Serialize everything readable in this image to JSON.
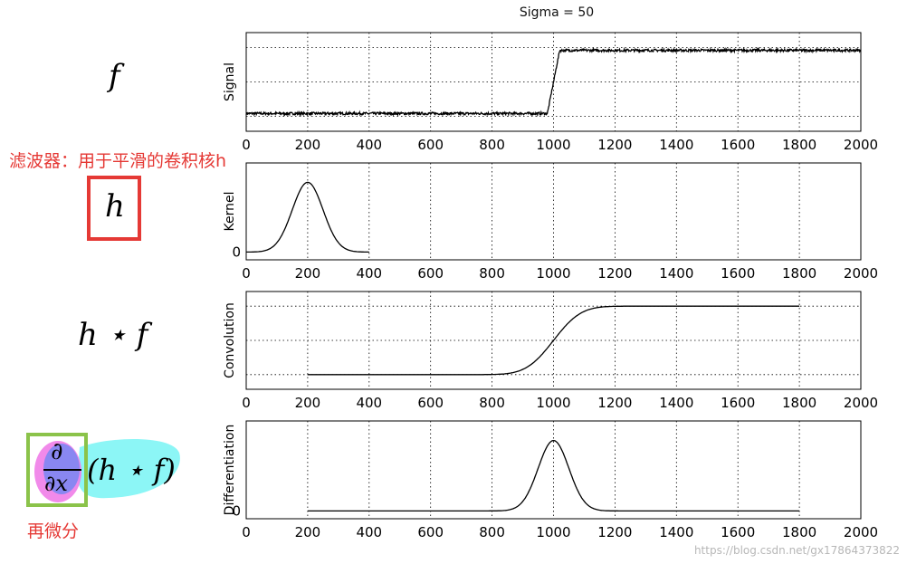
{
  "title": "Sigma = 50",
  "annotations": {
    "filter_text": "滤波器：用于平滑的卷积核h",
    "diff_text": "再微分",
    "watermark": "https://blog.csdn.net/gx17864373822"
  },
  "left_labels": {
    "f": "f",
    "h": "h",
    "conv": "h ⋆ f",
    "diff_num": "∂",
    "diff_den": "∂x",
    "diff_rest": "(h ⋆ f)"
  },
  "colors": {
    "line": "#000000",
    "grid": "#000000",
    "accent_red": "#e53935",
    "accent_green": "#8bc34a",
    "highlight_cyan": "#7ff5f5",
    "highlight_pink": "#f07de8",
    "highlight_blue": "#7d86f2"
  },
  "chart_data": [
    {
      "type": "line",
      "ylabel": "Signal",
      "xlim": [
        0,
        2000
      ],
      "x_ticks": [
        "0",
        "200",
        "400",
        "600",
        "800",
        "1000",
        "1200",
        "1400",
        "1600",
        "1800",
        "2000"
      ],
      "y_ticks": [],
      "grid": true,
      "series": [
        {
          "x": [
            0,
            980,
            1020,
            2000
          ],
          "y": [
            0,
            0,
            1,
            1
          ],
          "noise": 0.02
        }
      ]
    },
    {
      "type": "line",
      "ylabel": "Kernel",
      "xlim": [
        0,
        2000
      ],
      "x_ticks": [
        "0",
        "200",
        "400",
        "600",
        "800",
        "1000",
        "1200",
        "1400",
        "1600",
        "1800",
        "2000"
      ],
      "y_ticks": [
        "0"
      ],
      "grid": true,
      "series": [
        {
          "gaussian": {
            "center": 200,
            "sigma": 50,
            "start": 0,
            "end": 400,
            "peak": 1
          }
        }
      ]
    },
    {
      "type": "line",
      "ylabel": "Convolution",
      "xlim": [
        0,
        2000
      ],
      "x_ticks": [
        "0",
        "200",
        "400",
        "600",
        "800",
        "1000",
        "1200",
        "1400",
        "1600",
        "1800",
        "2000"
      ],
      "y_ticks": [],
      "grid": true,
      "series": [
        {
          "smooth_step": {
            "center": 1000,
            "sigma": 50,
            "start": 200,
            "end": 1800
          }
        }
      ]
    },
    {
      "type": "line",
      "ylabel": "Differentiation",
      "xlim": [
        0,
        2000
      ],
      "x_ticks": [
        "0",
        "200",
        "400",
        "600",
        "800",
        "1000",
        "1200",
        "1400",
        "1600",
        "1800",
        "2000"
      ],
      "y_ticks": [
        "0"
      ],
      "grid": true,
      "series": [
        {
          "gaussian": {
            "center": 1000,
            "sigma": 50,
            "start": 200,
            "end": 1800,
            "peak": 1
          }
        }
      ]
    }
  ]
}
